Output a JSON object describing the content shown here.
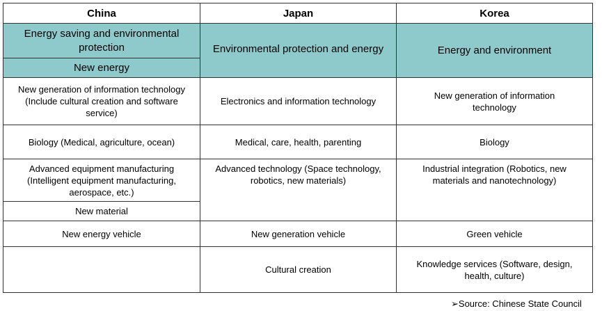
{
  "headers": [
    "China",
    "Japan",
    "Korea"
  ],
  "china": {
    "teal_1": "Energy saving and environmental protection",
    "teal_2": "New energy",
    "row_1": "New generation of information technology (Include cultural creation and software service)",
    "row_2": "Biology  (Medical, agriculture, ocean)",
    "row_3a": "Advanced equipment manufacturing (Intelligent equipment manufacturing, aerospace, etc.)",
    "row_3b": "New material",
    "row_4": "New energy vehicle",
    "row_5": ""
  },
  "japan": {
    "teal": "Environmental protection and energy",
    "row_1": "Electronics and information technology",
    "row_2": "Medical, care, health, parenting",
    "row_3": "Advanced technology (Space technology, robotics, new materials)",
    "row_4": "New generation vehicle",
    "row_5": "Cultural creation"
  },
  "korea": {
    "teal": "Energy and environment",
    "row_1": "New generation of information technology",
    "row_2": "Biology",
    "row_3": "Industrial integration (Robotics, new materials and nanotechnology)",
    "row_4": "Green vehicle",
    "row_5": "Knowledge services (Software, design, health, culture)"
  },
  "source": "➢Source: Chinese State Council",
  "colors": {
    "highlight": "#8ecacc",
    "border": "#333333"
  }
}
